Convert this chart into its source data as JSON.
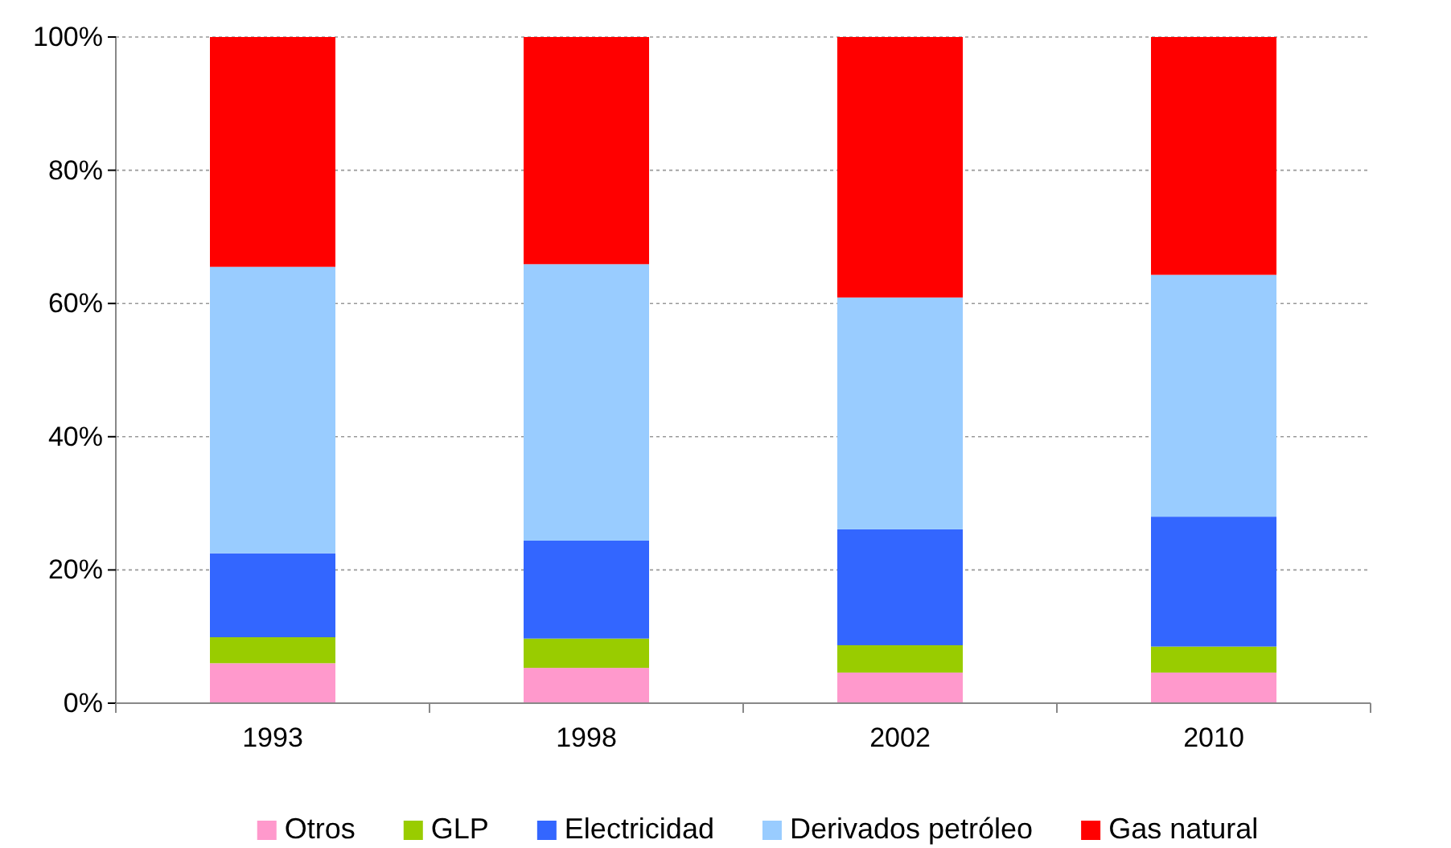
{
  "chart_data": {
    "type": "bar",
    "stacked": true,
    "categories": [
      "1993",
      "1998",
      "2002",
      "2010"
    ],
    "series": [
      {
        "name": "Otros",
        "color": "#ff99cc",
        "values": [
          6.0,
          5.3,
          4.6,
          4.6
        ]
      },
      {
        "name": "GLP",
        "color": "#99cc00",
        "values": [
          3.9,
          4.4,
          4.1,
          3.9
        ]
      },
      {
        "name": "Electricidad",
        "color": "#3366ff",
        "values": [
          12.6,
          14.7,
          17.4,
          19.5
        ]
      },
      {
        "name": "Derivados petróleo",
        "color": "#99ccff",
        "values": [
          43.0,
          41.5,
          34.8,
          36.3
        ]
      },
      {
        "name": "Gas natural",
        "color": "#ff0000",
        "values": [
          34.5,
          34.1,
          39.1,
          35.7
        ]
      }
    ],
    "ylim": [
      0,
      100
    ],
    "yticks": [
      {
        "value": 0,
        "label": "0%"
      },
      {
        "value": 20,
        "label": "20%"
      },
      {
        "value": 40,
        "label": "40%"
      },
      {
        "value": 60,
        "label": "60%"
      },
      {
        "value": 80,
        "label": "80%"
      },
      {
        "value": 100,
        "label": "100%"
      }
    ],
    "grid": "y",
    "legend": "bottom"
  }
}
